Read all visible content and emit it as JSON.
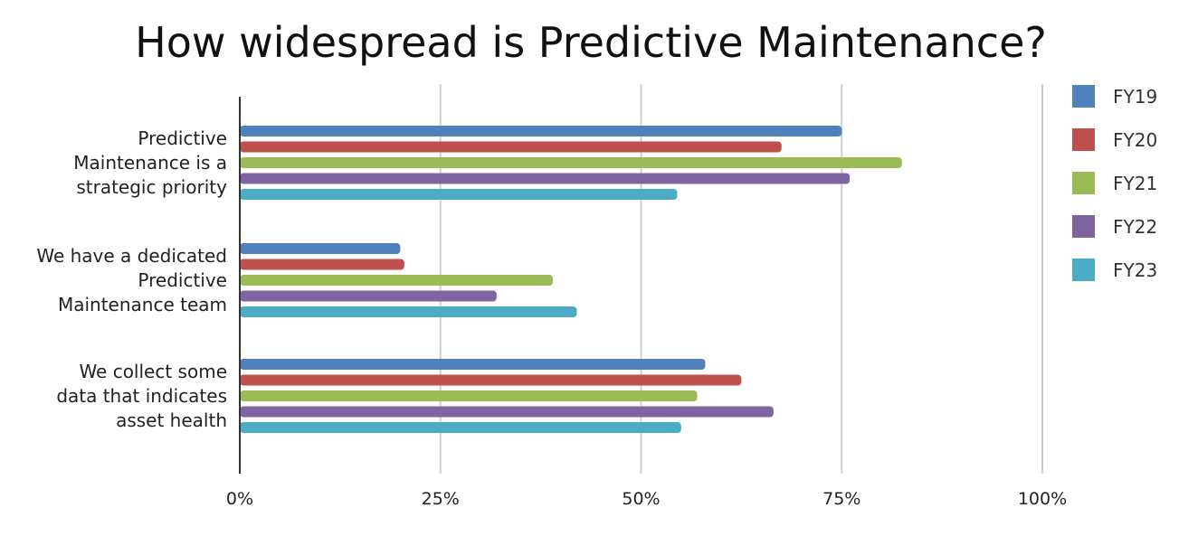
{
  "chart_data": {
    "type": "bar",
    "orientation": "horizontal",
    "title": "How widespread is Predictive Maintenance?",
    "xlabel": "",
    "ylabel": "",
    "xlim": [
      0,
      100
    ],
    "x_ticks": [
      "0%",
      "25%",
      "50%",
      "75%",
      "100%"
    ],
    "grid": "vertical",
    "legend_position": "right",
    "categories": [
      [
        "Predictive",
        "Maintenance is a",
        "strategic priority"
      ],
      [
        "We have a dedicated",
        "Predictive",
        "Maintenance team"
      ],
      [
        "We collect some",
        "data that indicates",
        "asset health"
      ]
    ],
    "series": [
      {
        "name": "FY19",
        "color": "#4f81bd",
        "values": [
          75,
          20,
          58
        ]
      },
      {
        "name": "FY20",
        "color": "#c0504d",
        "values": [
          67.5,
          20.5,
          62.5
        ]
      },
      {
        "name": "FY21",
        "color": "#9bbb59",
        "values": [
          82.5,
          39,
          57
        ]
      },
      {
        "name": "FY22",
        "color": "#8064a2",
        "values": [
          76,
          32,
          66.5
        ]
      },
      {
        "name": "FY23",
        "color": "#4bacc6",
        "values": [
          54.5,
          42,
          55
        ]
      }
    ]
  }
}
